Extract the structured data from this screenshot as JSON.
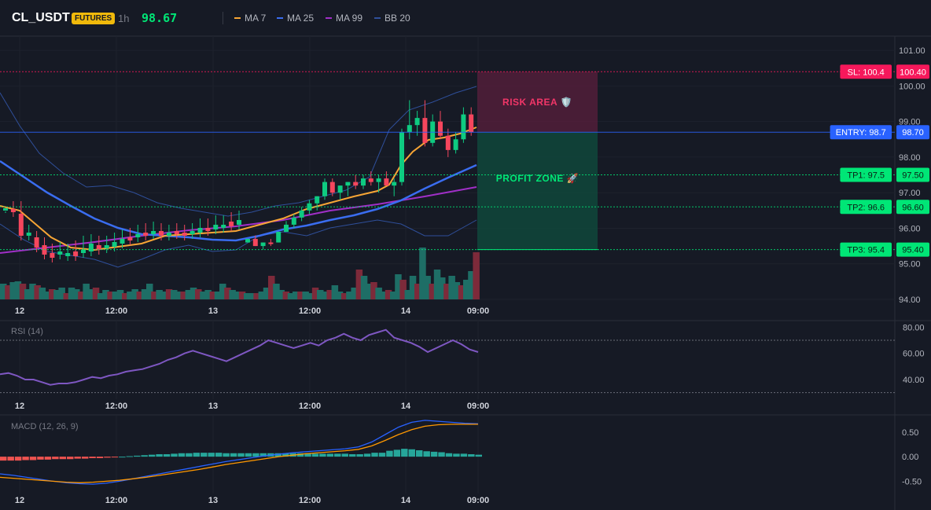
{
  "header": {
    "symbol": "CL_USDT",
    "badge": "FUTURES",
    "timeframe": "1h",
    "last_price": "98.67",
    "legend": [
      {
        "name": "MA 7",
        "color": "#f7a535"
      },
      {
        "name": "MA 25",
        "color": "#3a6df0"
      },
      {
        "name": "MA 99",
        "color": "#a02fc7"
      },
      {
        "name": "BB 20",
        "color": "#2f4f9a"
      }
    ]
  },
  "colors": {
    "up": "#0ecb81",
    "down": "#f6465d",
    "up_vol": "#1e6e66",
    "down_vol": "#7d2a3a",
    "entry": "#2962ff",
    "sl": "#f6185b",
    "tp": "#00e676",
    "rsi": "#7e57c2"
  },
  "chart_data": [
    {
      "type": "candlestick",
      "panel": "main",
      "y_ticks": [
        "101.00",
        "100.00",
        "99.00",
        "98.00",
        "97.00",
        "96.00",
        "95.00",
        "94.00"
      ],
      "ylim": [
        94,
        101.4
      ],
      "x_ticks": [
        "12",
        "12:00",
        "13",
        "12:00",
        "14",
        "09:00"
      ],
      "candles": [
        [
          95.6,
          95.7,
          95.6,
          95.7,
          1
        ],
        [
          95.7,
          95.8,
          95.5,
          95.5,
          0
        ],
        [
          95.5,
          95.6,
          95.4,
          95.6,
          1
        ],
        [
          95.6,
          95.7,
          95.5,
          95.6,
          0
        ],
        [
          95.6,
          95.9,
          95.6,
          95.9,
          1
        ],
        [
          95.9,
          96.2,
          95.9,
          96.1,
          1
        ],
        [
          96.1,
          96.4,
          96.0,
          96.3,
          1
        ],
        [
          96.3,
          96.6,
          96.2,
          96.5,
          1
        ],
        [
          96.5,
          96.8,
          96.4,
          96.7,
          1
        ],
        [
          96.7,
          96.9,
          96.5,
          96.9,
          1
        ],
        [
          96.9,
          97.4,
          96.8,
          97.3,
          1
        ],
        [
          97.3,
          97.4,
          96.9,
          97.0,
          0
        ],
        [
          97.0,
          97.2,
          96.8,
          97.2,
          1
        ],
        [
          97.2,
          97.3,
          96.9,
          97.3,
          1
        ],
        [
          97.3,
          97.5,
          97.1,
          97.2,
          0
        ],
        [
          97.2,
          97.5,
          97.1,
          97.4,
          1
        ],
        [
          97.4,
          97.6,
          97.2,
          97.3,
          0
        ],
        [
          97.3,
          97.5,
          97.0,
          97.4,
          1
        ],
        [
          97.4,
          97.6,
          97.2,
          97.2,
          0
        ],
        [
          97.2,
          97.4,
          96.9,
          97.3,
          1
        ],
        [
          97.3,
          98.8,
          97.2,
          98.7,
          1
        ],
        [
          98.7,
          99.6,
          98.5,
          98.9,
          1
        ],
        [
          98.9,
          99.3,
          98.6,
          99.1,
          1
        ],
        [
          99.1,
          99.6,
          98.3,
          98.4,
          0
        ],
        [
          98.4,
          99.2,
          98.3,
          99.0,
          1
        ],
        [
          99.0,
          99.3,
          98.5,
          98.6,
          0
        ],
        [
          98.6,
          98.8,
          98.0,
          98.2,
          0
        ],
        [
          98.2,
          98.7,
          98.1,
          98.5,
          1
        ],
        [
          98.5,
          99.4,
          98.4,
          99.2,
          1
        ],
        [
          99.2,
          99.4,
          98.6,
          98.7,
          0
        ]
      ],
      "levels": [
        {
          "label": "SL: 100.4",
          "price": "100.40",
          "value": 100.4,
          "kind": "sl"
        },
        {
          "label": "ENTRY: 98.7",
          "price": "98.70",
          "value": 98.7,
          "kind": "entry"
        },
        {
          "label": "TP1: 97.5",
          "price": "97.50",
          "value": 97.5,
          "kind": "tp"
        },
        {
          "label": "TP2: 96.6",
          "price": "96.60",
          "value": 96.6,
          "kind": "tp"
        },
        {
          "label": "TP3: 95.4",
          "price": "95.40",
          "value": 95.4,
          "kind": "tp"
        }
      ],
      "zones": {
        "risk": "RISK AREA 🛡️",
        "profit": "PROFIT ZONE 🚀"
      }
    },
    {
      "type": "line",
      "panel": "rsi",
      "title": "RSI (14)",
      "y_ticks": [
        "80.00",
        "60.00",
        "40.00"
      ],
      "ylim": [
        25,
        85
      ],
      "overbought": 70,
      "oversold": 30,
      "x_ticks": [
        "12",
        "12:00",
        "13",
        "12:00",
        "14",
        "09:00"
      ],
      "values": [
        44,
        45,
        43,
        40,
        40,
        38,
        36,
        37,
        37,
        38,
        40,
        42,
        41,
        43,
        44,
        46,
        47,
        48,
        50,
        52,
        55,
        57,
        60,
        62,
        60,
        58,
        56,
        54,
        57,
        60,
        63,
        66,
        70,
        68,
        66,
        64,
        66,
        68,
        66,
        70,
        72,
        75,
        72,
        70,
        74,
        76,
        78,
        72,
        70,
        68,
        65,
        61,
        64,
        67,
        70,
        67,
        63,
        61
      ]
    },
    {
      "type": "bar+line",
      "panel": "macd",
      "title": "MACD (12, 26, 9)",
      "y_ticks": [
        "0.50",
        "0.00",
        "-0.50"
      ],
      "ylim": [
        -0.75,
        0.85
      ],
      "x_ticks": [
        "12",
        "12:00",
        "13",
        "12:00",
        "14",
        "09:00"
      ],
      "histogram": [
        -0.08,
        -0.08,
        -0.08,
        -0.07,
        -0.07,
        -0.06,
        -0.06,
        -0.05,
        -0.05,
        -0.05,
        -0.04,
        -0.04,
        -0.03,
        -0.03,
        -0.02,
        -0.01,
        0.0,
        0.01,
        0.02,
        0.03,
        0.04,
        0.05,
        0.05,
        0.06,
        0.07,
        0.07,
        0.08,
        0.08,
        0.08,
        0.08,
        0.07,
        0.07,
        0.07,
        0.07,
        0.07,
        0.07,
        0.07,
        0.07,
        0.07,
        0.07,
        0.07,
        0.07,
        0.06,
        0.06,
        0.06,
        0.06,
        0.06,
        0.05,
        0.05,
        0.06,
        0.08,
        0.08,
        0.12,
        0.14,
        0.16,
        0.15,
        0.13,
        0.11,
        0.1,
        0.09,
        0.07,
        0.06,
        0.06,
        0.05,
        0.04
      ],
      "macd": [
        -0.35,
        -0.38,
        -0.42,
        -0.46,
        -0.5,
        -0.53,
        -0.55,
        -0.56,
        -0.54,
        -0.5,
        -0.45,
        -0.4,
        -0.35,
        -0.3,
        -0.25,
        -0.2,
        -0.15,
        -0.1,
        -0.06,
        -0.02,
        0.02,
        0.05,
        0.08,
        0.1,
        0.12,
        0.14,
        0.16,
        0.2,
        0.3,
        0.45,
        0.6,
        0.7,
        0.74,
        0.72,
        0.7,
        0.68,
        0.67
      ],
      "signal": [
        -0.42,
        -0.44,
        -0.46,
        -0.48,
        -0.5,
        -0.52,
        -0.53,
        -0.52,
        -0.5,
        -0.48,
        -0.45,
        -0.42,
        -0.38,
        -0.34,
        -0.3,
        -0.26,
        -0.21,
        -0.16,
        -0.12,
        -0.08,
        -0.04,
        0.0,
        0.03,
        0.06,
        0.08,
        0.1,
        0.12,
        0.15,
        0.22,
        0.33,
        0.45,
        0.55,
        0.62,
        0.65,
        0.66,
        0.66,
        0.66
      ]
    }
  ]
}
